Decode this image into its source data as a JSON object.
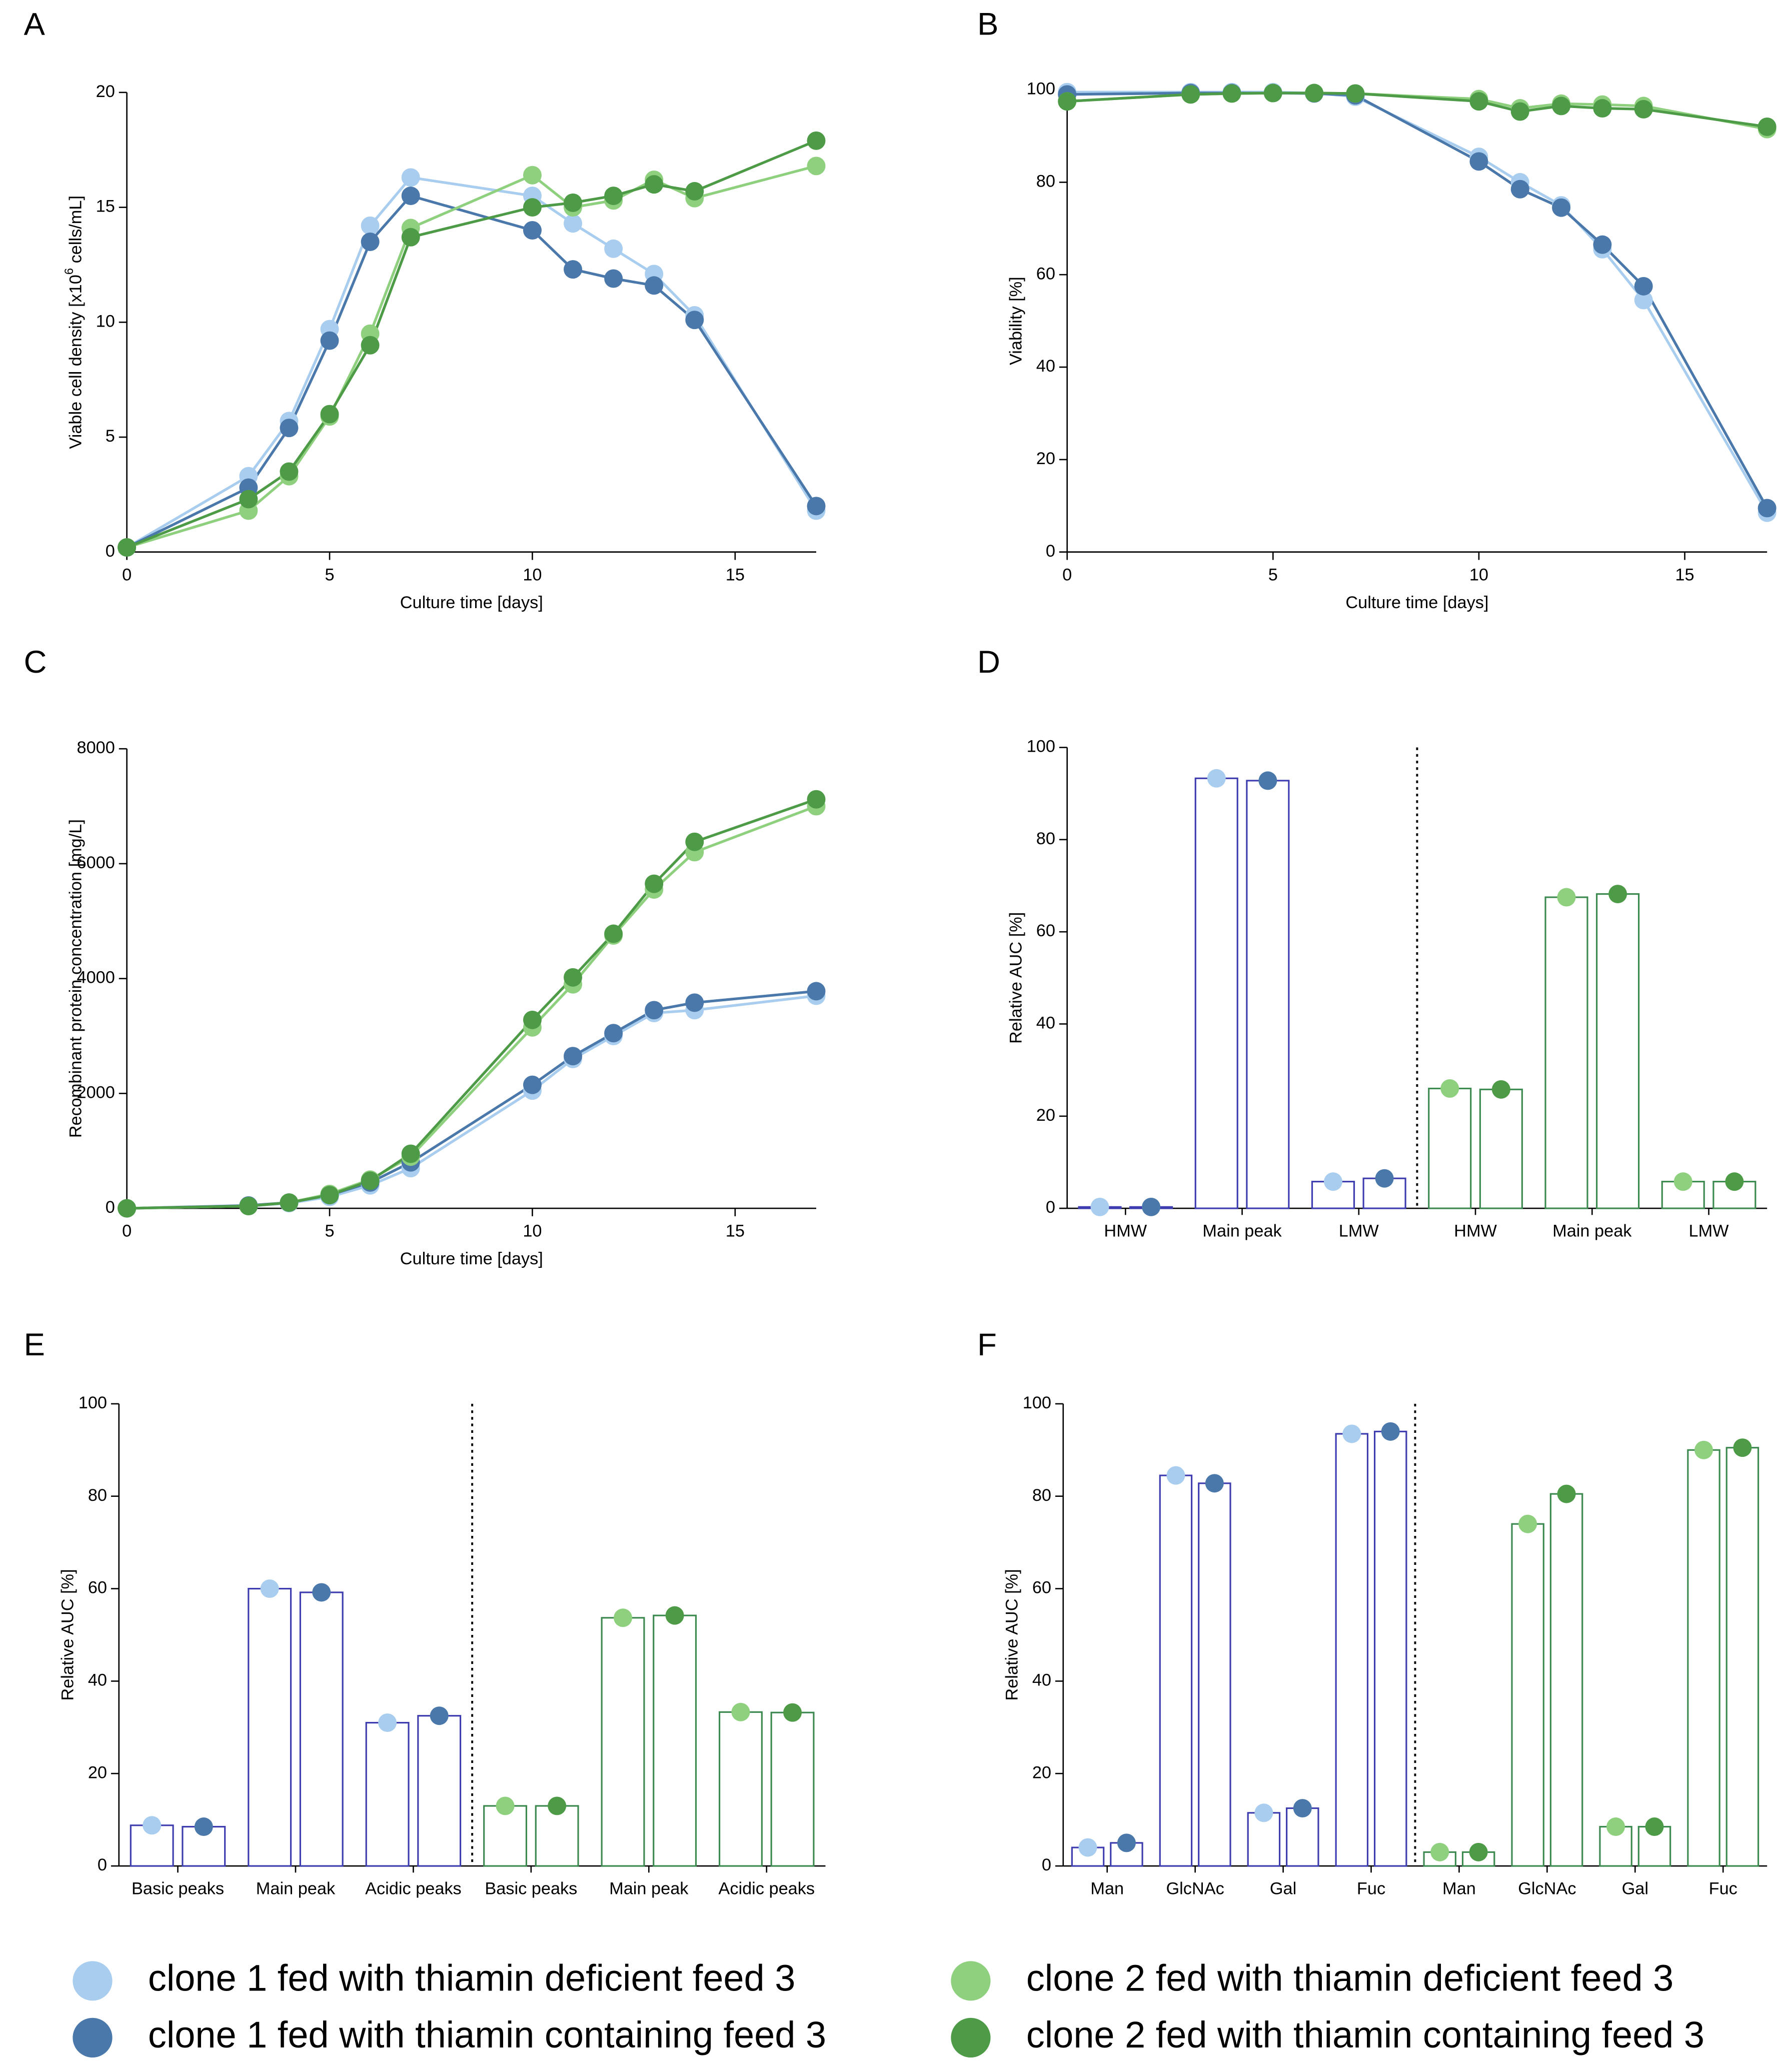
{
  "chart_data": [
    {
      "type": "line",
      "panel": "A",
      "xlabel": "Culture time [days]",
      "ylabel": {
        "text": "Viable cell density [x10",
        "superscript": "6",
        "text_after": " cells/mL]"
      },
      "x": [
        0,
        3,
        4,
        5,
        6,
        7,
        10,
        11,
        12,
        13,
        14,
        17
      ],
      "xlim": [
        0,
        17
      ],
      "xticks": [
        0,
        5,
        10,
        15
      ],
      "ylim": [
        0,
        20
      ],
      "yticks": [
        0,
        5,
        10,
        15,
        20
      ],
      "series": [
        {
          "color": "#a8cdee",
          "values": [
            0.2,
            3.3,
            5.7,
            9.7,
            14.2,
            16.3,
            15.5,
            14.3,
            13.2,
            12.1,
            10.3,
            1.8
          ]
        },
        {
          "color": "#4a78aa",
          "values": [
            0.2,
            2.8,
            5.4,
            9.2,
            13.5,
            15.5,
            14.0,
            12.3,
            11.9,
            11.6,
            10.1,
            2.0
          ]
        },
        {
          "color": "#8ed07e",
          "values": [
            0.2,
            1.8,
            3.3,
            5.9,
            9.5,
            14.1,
            16.4,
            15.0,
            15.3,
            16.2,
            15.4,
            16.8
          ]
        },
        {
          "color": "#4e9b47",
          "values": [
            0.2,
            2.3,
            3.5,
            6.0,
            9.0,
            13.7,
            15.0,
            15.2,
            15.5,
            16.0,
            15.7,
            17.9
          ]
        }
      ]
    },
    {
      "type": "line",
      "panel": "B",
      "xlabel": "Culture time [days]",
      "ylabel": "Viability [%]",
      "x": [
        0,
        3,
        4,
        5,
        6,
        7,
        10,
        11,
        12,
        13,
        14,
        17
      ],
      "xlim": [
        0,
        17
      ],
      "xticks": [
        0,
        5,
        10,
        15
      ],
      "ylim": [
        0,
        100
      ],
      "yticks": [
        0,
        20,
        40,
        60,
        80,
        100
      ],
      "series": [
        {
          "color": "#a8cdee",
          "values": [
            99.5,
            99.5,
            99.5,
            99.5,
            99.3,
            98.5,
            85.5,
            80,
            75,
            65.5,
            54.5,
            8.5
          ]
        },
        {
          "color": "#4a78aa",
          "values": [
            99,
            99.3,
            99.3,
            99.3,
            99.2,
            98.8,
            84.5,
            78.5,
            74.5,
            66.5,
            57.5,
            9.5
          ]
        },
        {
          "color": "#8ed07e",
          "values": [
            97.5,
            99,
            99.2,
            99.3,
            99.3,
            99.2,
            98,
            96,
            97,
            96.8,
            96.5,
            91.5
          ]
        },
        {
          "color": "#4e9b47",
          "values": [
            97.5,
            99,
            99.2,
            99.3,
            99.3,
            99.2,
            97.5,
            95.3,
            96.5,
            96,
            95.8,
            92
          ]
        }
      ]
    },
    {
      "type": "line",
      "panel": "C",
      "xlabel": "Culture time [days]",
      "ylabel": "Recombinant protein concentration [mg/L]",
      "x": [
        0,
        3,
        4,
        5,
        6,
        7,
        10,
        11,
        12,
        13,
        14,
        17
      ],
      "xlim": [
        0,
        17
      ],
      "xticks": [
        0,
        5,
        10,
        15
      ],
      "ylim": [
        0,
        8000
      ],
      "yticks": [
        0,
        2000,
        4000,
        6000,
        8000
      ],
      "series": [
        {
          "color": "#a8cdee",
          "values": [
            0,
            40,
            90,
            200,
            400,
            700,
            2050,
            2600,
            3000,
            3400,
            3450,
            3700
          ]
        },
        {
          "color": "#4a78aa",
          "values": [
            0,
            50,
            100,
            230,
            450,
            800,
            2150,
            2650,
            3050,
            3450,
            3580,
            3780
          ]
        },
        {
          "color": "#8ed07e",
          "values": [
            0,
            40,
            100,
            250,
            500,
            900,
            3150,
            3900,
            4750,
            5550,
            6200,
            7000
          ]
        },
        {
          "color": "#4e9b47",
          "values": [
            0,
            40,
            100,
            230,
            480,
            950,
            3280,
            4020,
            4780,
            5650,
            6380,
            7120
          ]
        }
      ]
    },
    {
      "type": "bar",
      "panel": "D",
      "ylabel": "Relative AUC [%]",
      "categories": [
        "HMW",
        "Main peak",
        "LMW",
        "HMW",
        "Main peak",
        "LMW"
      ],
      "ylim": [
        0,
        100
      ],
      "yticks": [
        0,
        20,
        40,
        60,
        80,
        100
      ],
      "series": [
        {
          "color": "#a8cdee",
          "edgecolor": "#3d3db0",
          "values": [
            0.3,
            93.3,
            5.8,
            null,
            null,
            null
          ]
        },
        {
          "color": "#4a78aa",
          "edgecolor": "#3d3db0",
          "values": [
            0.3,
            92.8,
            6.5,
            null,
            null,
            null
          ]
        },
        {
          "color": "#8ed07e",
          "edgecolor": "#3c8a50",
          "values": [
            null,
            null,
            null,
            26,
            67.5,
            5.8
          ]
        },
        {
          "color": "#4e9b47",
          "edgecolor": "#3c8a50",
          "values": [
            null,
            null,
            null,
            25.8,
            68.2,
            5.8
          ]
        }
      ]
    },
    {
      "type": "bar",
      "panel": "E",
      "ylabel": "Relative AUC [%]",
      "categories": [
        "Basic peaks",
        "Main peak",
        "Acidic peaks",
        "Basic peaks",
        "Main peak",
        "Acidic peaks"
      ],
      "ylim": [
        0,
        100
      ],
      "yticks": [
        0,
        20,
        40,
        60,
        80,
        100
      ],
      "series": [
        {
          "color": "#a8cdee",
          "edgecolor": "#3d3db0",
          "values": [
            8.8,
            60,
            31,
            null,
            null,
            null
          ]
        },
        {
          "color": "#4a78aa",
          "edgecolor": "#3d3db0",
          "values": [
            8.5,
            59.2,
            32.5,
            null,
            null,
            null
          ]
        },
        {
          "color": "#8ed07e",
          "edgecolor": "#3c8a50",
          "values": [
            null,
            null,
            null,
            13,
            53.7,
            33.3
          ]
        },
        {
          "color": "#4e9b47",
          "edgecolor": "#3c8a50",
          "values": [
            null,
            null,
            null,
            13,
            54.2,
            33.2
          ]
        }
      ]
    },
    {
      "type": "bar",
      "panel": "F",
      "ylabel": "Relative AUC [%]",
      "categories": [
        "Man",
        "GlcNAc",
        "Gal",
        "Fuc",
        "Man",
        "GlcNAc",
        "Gal",
        "Fuc"
      ],
      "ylim": [
        0,
        100
      ],
      "yticks": [
        0,
        20,
        40,
        60,
        80,
        100
      ],
      "series": [
        {
          "color": "#a8cdee",
          "edgecolor": "#3d3db0",
          "values": [
            4,
            84.5,
            11.5,
            93.5,
            null,
            null,
            null,
            null
          ]
        },
        {
          "color": "#4a78aa",
          "edgecolor": "#3d3db0",
          "values": [
            5,
            82.8,
            12.5,
            94,
            null,
            null,
            null,
            null
          ]
        },
        {
          "color": "#8ed07e",
          "edgecolor": "#3c8a50",
          "values": [
            null,
            null,
            null,
            null,
            3,
            74,
            8.5,
            90
          ]
        },
        {
          "color": "#4e9b47",
          "edgecolor": "#3c8a50",
          "values": [
            null,
            null,
            null,
            null,
            3,
            80.5,
            8.5,
            90.5
          ]
        }
      ]
    }
  ],
  "legend": {
    "entries": [
      {
        "name": "clone 1 fed with thiamin deficient feed 3",
        "color": "#a8cdee"
      },
      {
        "name": "clone 1 fed with thiamin containing feed 3",
        "color": "#4a78aa"
      },
      {
        "name": "clone 2 fed with thiamin deficient feed 3",
        "color": "#8ed07e"
      },
      {
        "name": "clone 2 fed with thiamin containing feed 3",
        "color": "#4e9b47"
      }
    ]
  }
}
